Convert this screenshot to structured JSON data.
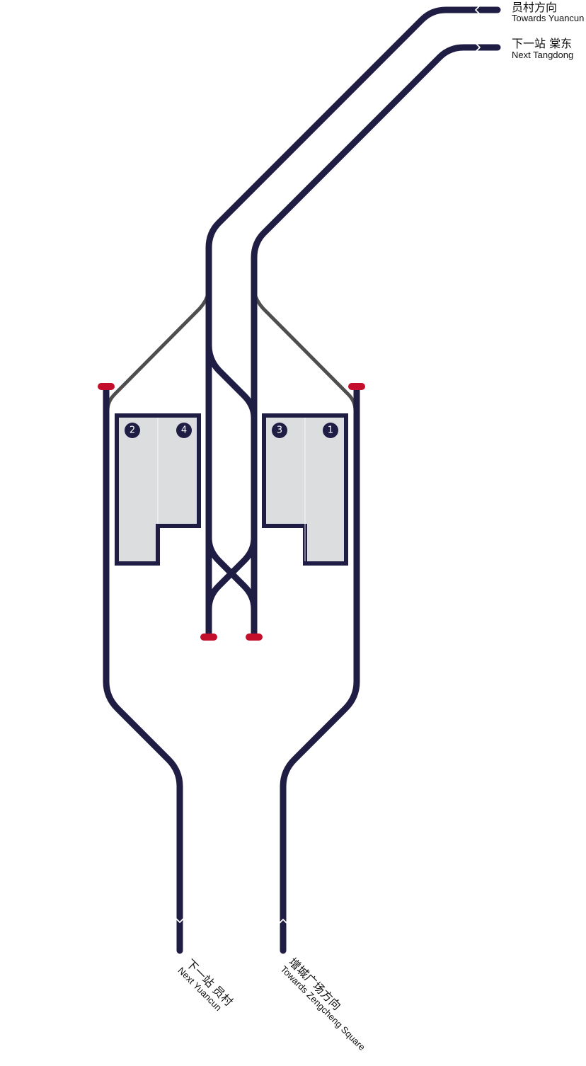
{
  "colors": {
    "track": "#201d45",
    "connector_track": "#4e4e4e",
    "buffer_stop": "#c40f2c",
    "platform_fill": "#dcddde"
  },
  "labels": {
    "top_1": {
      "zh": "员村方向",
      "en": "Towards Yuancun"
    },
    "top_2": {
      "zh": "下一站 棠东",
      "en": "Next Tangdong"
    },
    "bottom_left": {
      "zh": "下一站 员村",
      "en": "Next Yuancun"
    },
    "bottom_right": {
      "zh": "增城广场方向",
      "en": "Towards Zengcheng Square"
    }
  },
  "platforms": {
    "left": {
      "tracks": [
        "2",
        "4"
      ]
    },
    "right": {
      "tracks": [
        "3",
        "1"
      ]
    }
  },
  "icons": [
    "direction-chevron-icon",
    "buffer-stop-icon"
  ]
}
